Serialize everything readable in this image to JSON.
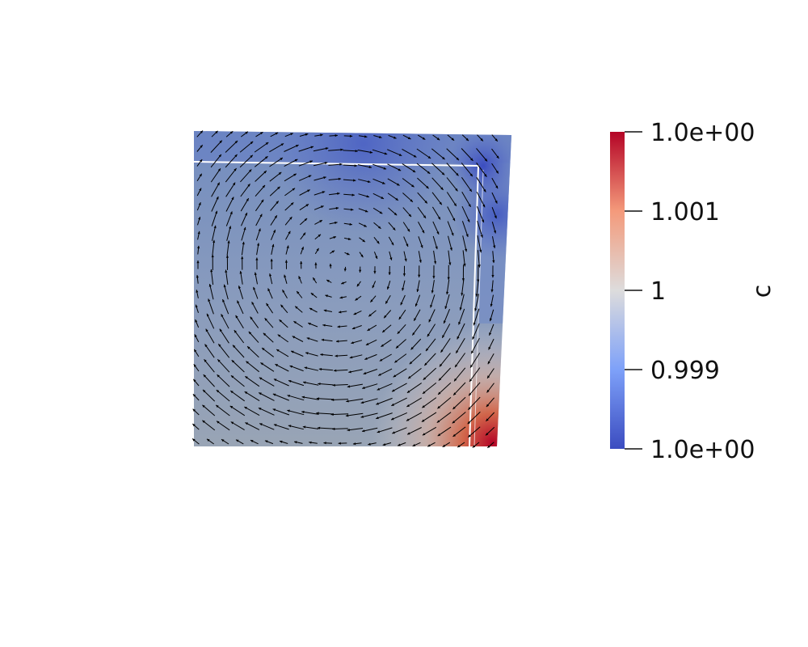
{
  "chart_data": {
    "type": "heatmap",
    "title": "",
    "field_name": "c",
    "colormap": {
      "name": "cool-to-warm",
      "stops": [
        {
          "t": 0.0,
          "color": "#3b4cc0"
        },
        {
          "t": 0.25,
          "color": "#7ea1f9"
        },
        {
          "t": 0.5,
          "color": "#dddcdc"
        },
        {
          "t": 0.75,
          "color": "#f49a7b"
        },
        {
          "t": 1.0,
          "color": "#b40426"
        }
      ]
    },
    "colorbar": {
      "orientation": "vertical",
      "range": [
        0.998,
        1.002
      ],
      "ticks": [
        {
          "value": 1.002,
          "label": "1.0e+00"
        },
        {
          "value": 1.001,
          "label": "1.001"
        },
        {
          "value": 1.0,
          "label": "1"
        },
        {
          "value": 0.999,
          "label": "0.999"
        },
        {
          "value": 0.998,
          "label": "1.0e+00"
        }
      ]
    },
    "domain": {
      "x_range": [
        0,
        1
      ],
      "y_range": [
        0,
        1
      ]
    },
    "vectors": {
      "type": "glyph-arrows",
      "pattern": "clockwise-vortex",
      "color": "#000000"
    }
  }
}
